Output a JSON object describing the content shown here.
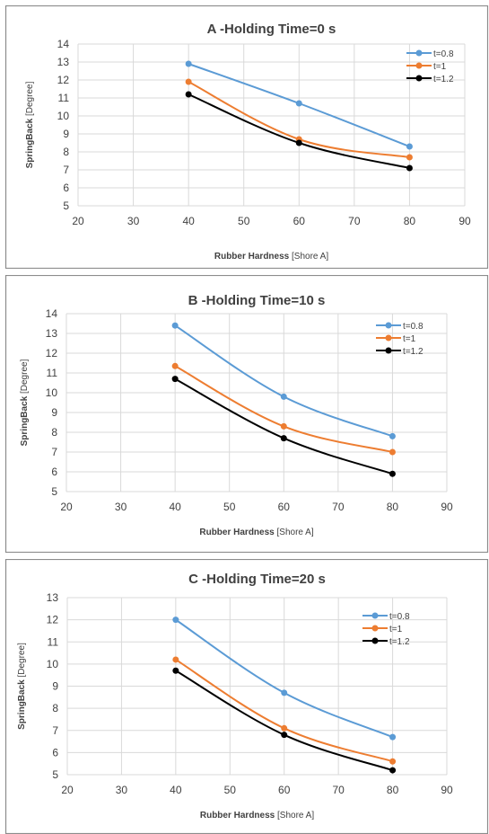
{
  "chart_data": [
    {
      "type": "line",
      "title": "A -Holding Time=0 s",
      "ylabel_main": "SpringBack",
      "ylabel_unit": " [Degree]",
      "xlabel_main": "Rubber Hardness",
      "xlabel_unit": " [Shore A]",
      "xlim": [
        20,
        90
      ],
      "xticks": [
        20,
        30,
        40,
        50,
        60,
        70,
        80,
        90
      ],
      "ylim": [
        5,
        14
      ],
      "yticks": [
        5,
        6,
        7,
        8,
        9,
        10,
        11,
        12,
        13,
        14
      ],
      "grid": true,
      "legend_position": "top-right",
      "x": [
        40,
        60,
        80
      ],
      "series": [
        {
          "name": "t=0.8",
          "color": "#5B9BD5",
          "values": [
            12.9,
            10.7,
            8.3
          ]
        },
        {
          "name": "t=1",
          "color": "#ED7D31",
          "values": [
            11.9,
            8.7,
            7.7
          ]
        },
        {
          "name": "t=1.2",
          "color": "#000000",
          "values": [
            11.2,
            8.5,
            7.1
          ]
        }
      ]
    },
    {
      "type": "line",
      "title": "B -Holding Time=10 s",
      "ylabel_main": "SpringBack",
      "ylabel_unit": " [Degree]",
      "xlabel_main": "Rubber Hardness",
      "xlabel_unit": " [Shore A]",
      "xlim": [
        20,
        90
      ],
      "xticks": [
        20,
        30,
        40,
        50,
        60,
        70,
        80,
        90
      ],
      "ylim": [
        5,
        14
      ],
      "yticks": [
        5,
        6,
        7,
        8,
        9,
        10,
        11,
        12,
        13,
        14
      ],
      "grid": true,
      "legend_position": "top-right",
      "x": [
        40,
        60,
        80
      ],
      "series": [
        {
          "name": "t=0.8",
          "color": "#5B9BD5",
          "values": [
            13.4,
            9.8,
            7.8
          ]
        },
        {
          "name": "t=1",
          "color": "#ED7D31",
          "values": [
            11.35,
            8.3,
            7.0
          ]
        },
        {
          "name": "t=1.2",
          "color": "#000000",
          "values": [
            10.7,
            7.7,
            5.9
          ]
        }
      ]
    },
    {
      "type": "line",
      "title": "C -Holding Time=20 s",
      "ylabel_main": "SpringBack",
      "ylabel_unit": " [Degree]",
      "xlabel_main": "Rubber Hardness",
      "xlabel_unit": " [Shore A]",
      "xlim": [
        20,
        90
      ],
      "xticks": [
        20,
        30,
        40,
        50,
        60,
        70,
        80,
        90
      ],
      "ylim": [
        5,
        13
      ],
      "yticks": [
        5,
        6,
        7,
        8,
        9,
        10,
        11,
        12,
        13
      ],
      "grid": true,
      "legend_position": "top-right",
      "x": [
        40,
        60,
        80
      ],
      "series": [
        {
          "name": "t=0.8",
          "color": "#5B9BD5",
          "values": [
            12.0,
            8.7,
            6.7
          ]
        },
        {
          "name": "t=1",
          "color": "#ED7D31",
          "values": [
            10.2,
            7.1,
            5.6
          ]
        },
        {
          "name": "t=1.2",
          "color": "#000000",
          "values": [
            9.7,
            6.8,
            5.2
          ]
        }
      ]
    }
  ]
}
